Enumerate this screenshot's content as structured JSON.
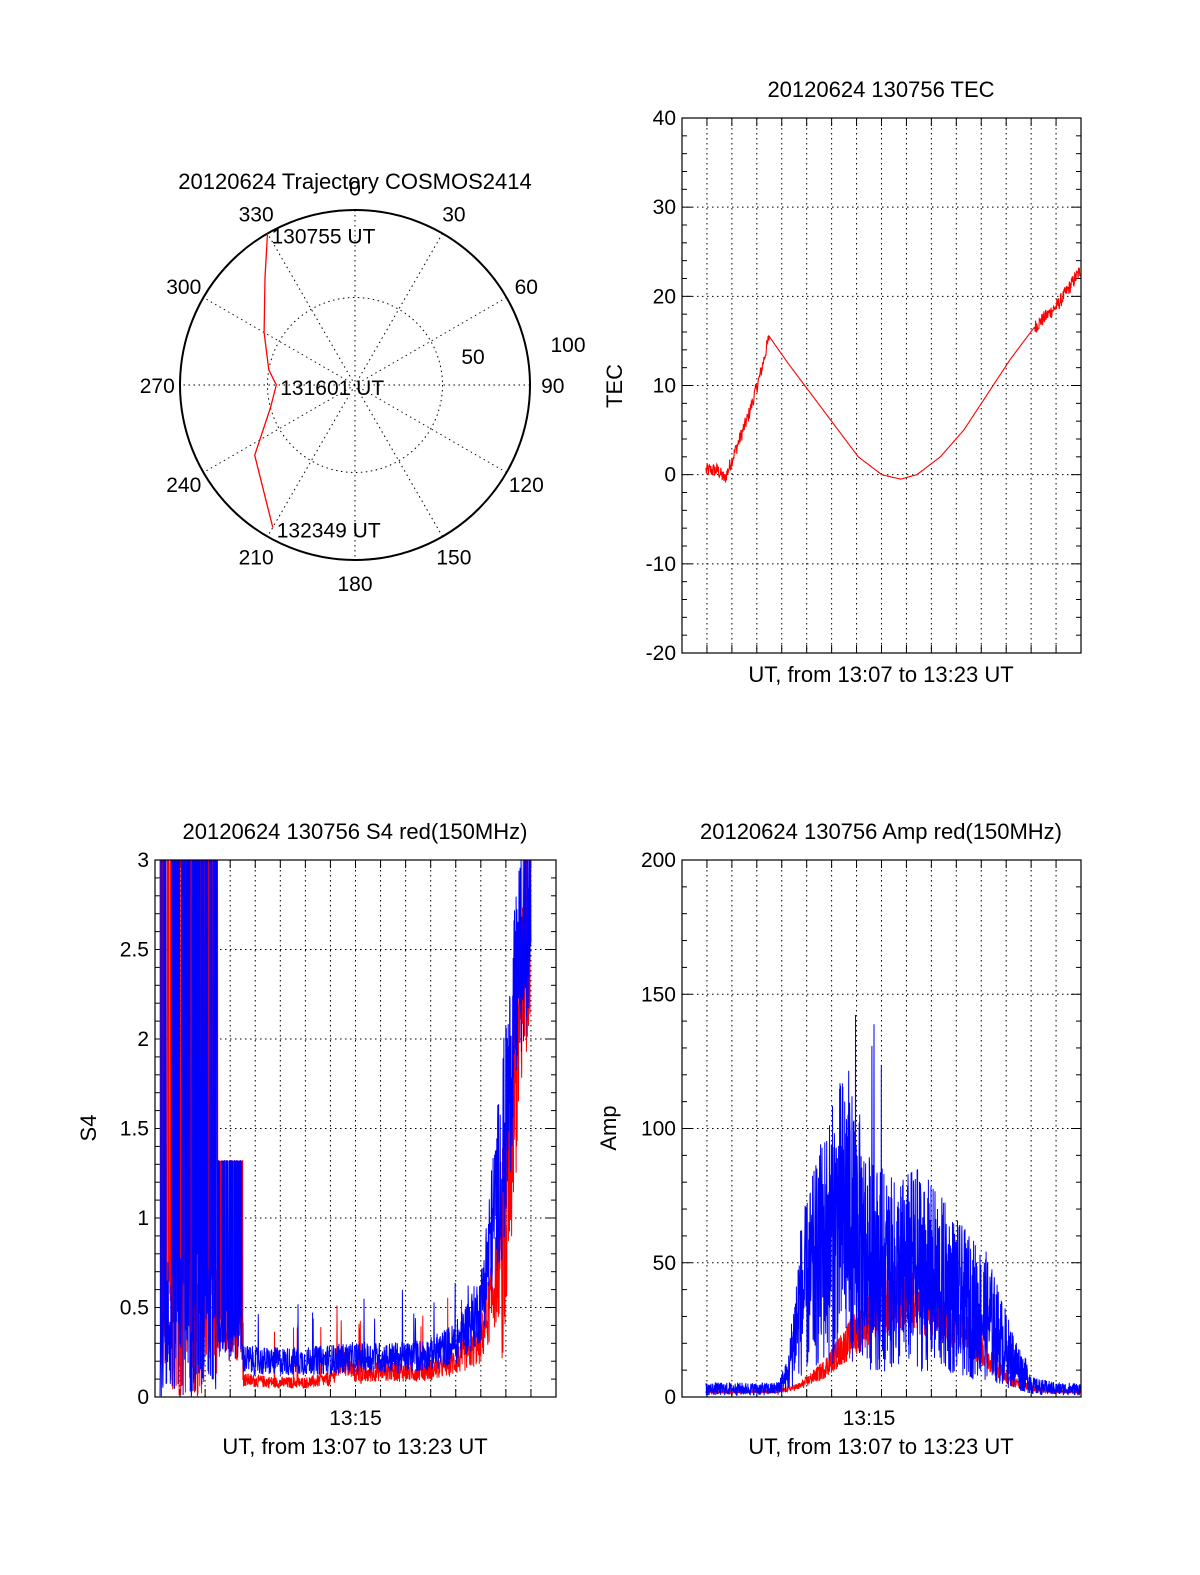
{
  "chart_data": [
    {
      "type": "polar",
      "title": "20120624 Trajectory COSMOS2414",
      "angle_labels": [
        "0",
        "30",
        "60",
        "90",
        "120",
        "150",
        "180",
        "210",
        "240",
        "270",
        "300",
        "330"
      ],
      "radius_labels": [
        "50",
        "100"
      ],
      "radius_range": [
        0,
        100
      ],
      "grid": true,
      "series": [
        {
          "color": "#ff0000",
          "points": [
            [
              330,
              100
            ],
            [
              320,
              80
            ],
            [
              300,
              60
            ],
            [
              280,
              50
            ],
            [
              270,
              45
            ],
            [
              255,
              50
            ],
            [
              235,
              70
            ],
            [
              210,
              94
            ]
          ]
        }
      ],
      "annotations": [
        {
          "text": "130755 UT",
          "angle": 330,
          "r": 100
        },
        {
          "text": "131601 UT",
          "angle": 270,
          "r": 45
        },
        {
          "text": "132349 UT",
          "angle": 210,
          "r": 94
        }
      ]
    },
    {
      "type": "line",
      "title": "20120624 130756 TEC",
      "xlabel": "UT, from 13:07 to 13:23 UT",
      "ylabel": "TEC",
      "ylim": [
        -20,
        40
      ],
      "yticks": [
        "-20",
        "-10",
        "0",
        "10",
        "20",
        "30",
        "40"
      ],
      "xlim": [
        0,
        16
      ],
      "grid": true,
      "series": [
        {
          "color": "#ff0000",
          "x": [
            0,
            0.5,
            0.8,
            1.3,
            1.8,
            2.3,
            2.7,
            3.5,
            4.5,
            5.5,
            6.5,
            7.5,
            8.3,
            9,
            10,
            11,
            12,
            13,
            14,
            15,
            16
          ],
          "values": [
            0.5,
            0.5,
            -0.5,
            3,
            6.5,
            11,
            15.5,
            12.5,
            9,
            5.5,
            2,
            0,
            -0.5,
            0,
            2,
            5,
            9,
            13,
            16.5,
            19,
            23
          ]
        }
      ]
    },
    {
      "type": "line",
      "title": "20120624 130756 S4 red(150MHz)",
      "xlabel": "UT, from 13:07 to 13:23 UT",
      "ylabel": "S4",
      "ylim": [
        0,
        3
      ],
      "yticks": [
        "0",
        "0.5",
        "1",
        "1.5",
        "2",
        "2.5",
        "3"
      ],
      "xtick_labels": [
        "13:15"
      ],
      "grid": true,
      "series": [
        {
          "color": "#ff0000",
          "x": [
            0.2,
            1.6,
            2.2,
            2.7,
            3.3,
            4,
            5,
            6,
            7,
            7.5,
            8,
            8.3,
            9,
            10,
            11,
            12,
            13,
            14,
            14.5,
            15
          ],
          "values": [
            0.8,
            0.3,
            0.15,
            0.12,
            0.1,
            0.09,
            0.08,
            0.08,
            0.1,
            0.2,
            0.13,
            0.12,
            0.15,
            0.14,
            0.15,
            0.2,
            0.3,
            0.9,
            2,
            2.8
          ]
        },
        {
          "color": "#0000ff",
          "x": [
            0.2,
            1.6,
            2.2,
            2.7,
            3.3,
            4,
            5,
            6,
            7,
            8,
            9,
            10,
            11,
            12,
            13,
            14,
            14.5,
            15
          ],
          "values": [
            2.5,
            0.5,
            0.3,
            0.25,
            0.22,
            0.2,
            0.2,
            0.2,
            0.21,
            0.22,
            0.22,
            0.22,
            0.24,
            0.3,
            0.5,
            1.5,
            2.4,
            2.7
          ]
        }
      ]
    },
    {
      "type": "line",
      "title": "20120624 130756 Amp red(150MHz)",
      "xlabel": "UT, from 13:07 to 13:23 UT",
      "ylabel": "Amp",
      "ylim": [
        0,
        200
      ],
      "yticks": [
        "0",
        "50",
        "100",
        "150",
        "200"
      ],
      "xtick_labels": [
        "13:15"
      ],
      "grid": true,
      "series": [
        {
          "color": "#ff0000",
          "x": [
            0,
            2,
            3,
            4,
            5,
            6,
            7,
            8,
            9,
            10,
            11,
            12,
            13,
            14,
            15,
            16
          ],
          "values": [
            2,
            2,
            2,
            4,
            10,
            20,
            30,
            38,
            36,
            30,
            25,
            15,
            6,
            3,
            2,
            2
          ]
        },
        {
          "color": "#0000ff",
          "x": [
            0,
            2,
            3,
            3.5,
            4,
            5,
            6,
            6.5,
            7,
            8,
            9,
            10,
            11,
            12,
            13,
            14,
            15,
            16
          ],
          "values": [
            3,
            3,
            3,
            8,
            35,
            55,
            70,
            60,
            50,
            45,
            48,
            42,
            35,
            30,
            15,
            4,
            3,
            3
          ]
        }
      ]
    }
  ]
}
